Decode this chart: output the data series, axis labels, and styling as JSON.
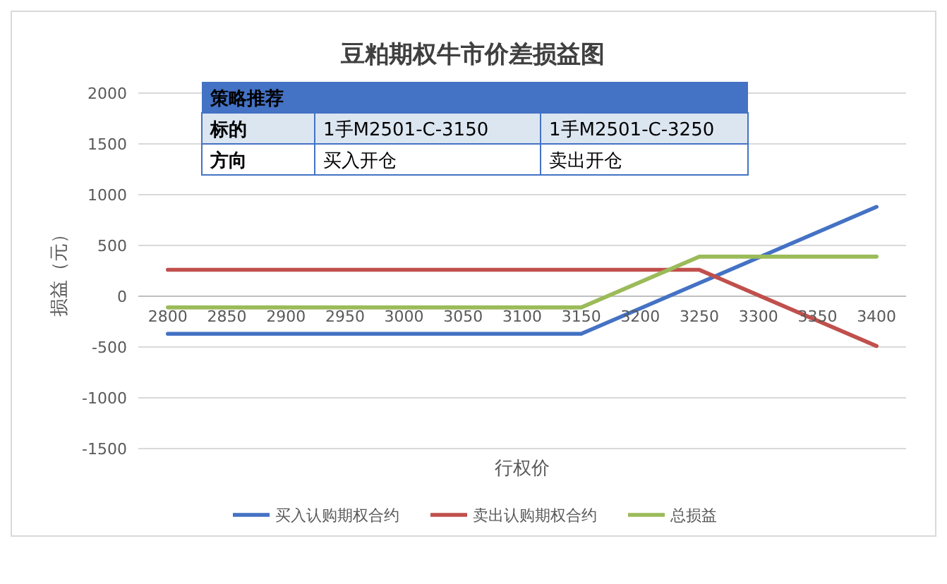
{
  "chart_data": {
    "type": "line",
    "title": "豆粕期权牛市价差损益图",
    "xlabel": "行权价",
    "ylabel": "损益（元）",
    "categories": [
      "2800",
      "2850",
      "2900",
      "2950",
      "3000",
      "3050",
      "3100",
      "3150",
      "3200",
      "3250",
      "3300",
      "3350",
      "3400"
    ],
    "series": [
      {
        "name": "买入认购期权合约",
        "color": "#4472c4",
        "values": [
          -370,
          -370,
          -370,
          -370,
          -370,
          -370,
          -370,
          -370,
          -120,
          130,
          380,
          630,
          880
        ]
      },
      {
        "name": "卖出认购期权合约",
        "color": "#c0504d",
        "values": [
          260,
          260,
          260,
          260,
          260,
          260,
          260,
          260,
          260,
          260,
          10,
          -240,
          -490
        ]
      },
      {
        "name": "总损益",
        "color": "#9bbb59",
        "values": [
          -110,
          -110,
          -110,
          -110,
          -110,
          -110,
          -110,
          -110,
          140,
          390,
          390,
          390,
          390
        ]
      }
    ],
    "ylim": [
      -1500,
      2000
    ],
    "yticks": [
      -1500,
      -1000,
      -500,
      0,
      500,
      1000,
      1500,
      2000
    ],
    "grid": "y",
    "legend": "bottom",
    "marker": "none",
    "line_style": "solid",
    "annotations": [
      "策略推荐",
      "标的",
      "1手M2501-C-3150",
      "1手M2501-C-3250",
      "方向",
      "买入开仓",
      "卖出开仓"
    ]
  }
}
